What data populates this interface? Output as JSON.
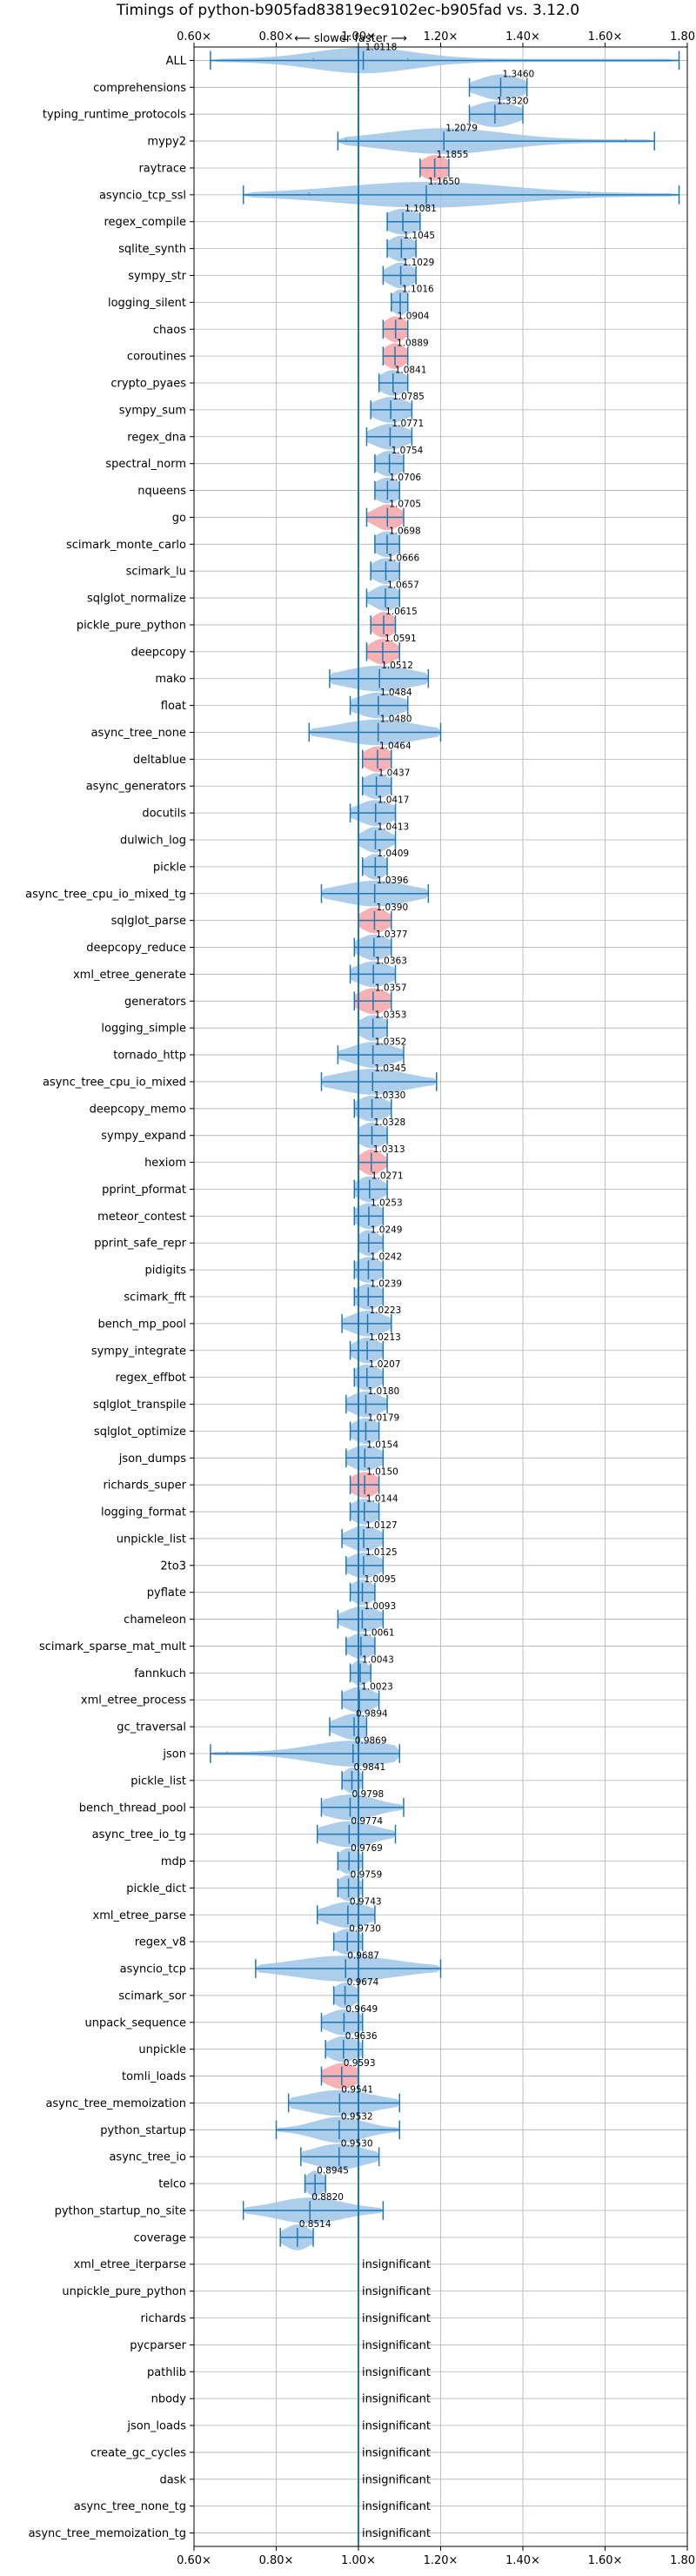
{
  "chart_data": {
    "type": "violin",
    "title": "Timings of python-b905fad83819ec9102ec-b905fad vs. 3.12.0",
    "subtitle": "⟵ slower   faster ⟶",
    "xlim": [
      0.6,
      1.8
    ],
    "x_ticks": [
      0.6,
      0.8,
      1.0,
      1.2,
      1.4,
      1.6,
      1.8
    ],
    "x_tick_labels": [
      "0.60×",
      "0.80×",
      "1.00×",
      "1.20×",
      "1.40×",
      "1.60×",
      "1.80×"
    ],
    "reference_line": 1.0,
    "grid": true,
    "insignificant_label": "insignificant",
    "colors": {
      "violin": "#9ec6e6",
      "violin_highlight": "#f4a3a8",
      "whisker": "#1f77b4",
      "grid": "#b0b0b0",
      "reference": "#1f77b4"
    },
    "benchmarks": [
      {
        "name": "ALL",
        "value": 1.0118,
        "label": "1.0118",
        "min": 0.64,
        "max": 1.78,
        "spread": 0.12,
        "q1": 0.89,
        "q3": 1.12,
        "highlight": false
      },
      {
        "name": "comprehensions",
        "value": 1.346,
        "label": "1.3460",
        "min": 1.27,
        "max": 1.41,
        "spread": 0.05,
        "highlight": false
      },
      {
        "name": "typing_runtime_protocols",
        "value": 1.332,
        "label": "1.3320",
        "min": 1.27,
        "max": 1.4,
        "spread": 0.05,
        "highlight": false
      },
      {
        "name": "mypy2",
        "value": 1.2079,
        "label": "1.2079",
        "min": 0.95,
        "max": 1.72,
        "spread": 0.14,
        "q1": 0.97,
        "q3": 1.65,
        "highlight": false
      },
      {
        "name": "raytrace",
        "value": 1.1855,
        "label": "1.1855",
        "min": 1.15,
        "max": 1.22,
        "spread": 0.03,
        "highlight": true
      },
      {
        "name": "asyncio_tcp_ssl",
        "value": 1.165,
        "label": "1.1650",
        "min": 0.72,
        "max": 1.78,
        "spread": 0.2,
        "q1": 0.88,
        "q3": 1.56,
        "highlight": false
      },
      {
        "name": "regex_compile",
        "value": 1.1081,
        "label": "1.1081",
        "min": 1.07,
        "max": 1.15,
        "spread": 0.04,
        "highlight": false
      },
      {
        "name": "sqlite_synth",
        "value": 1.1045,
        "label": "1.1045",
        "min": 1.07,
        "max": 1.14,
        "spread": 0.03,
        "highlight": false
      },
      {
        "name": "sympy_str",
        "value": 1.1029,
        "label": "1.1029",
        "min": 1.06,
        "max": 1.14,
        "spread": 0.03,
        "highlight": false
      },
      {
        "name": "logging_silent",
        "value": 1.1016,
        "label": "1.1016",
        "min": 1.08,
        "max": 1.12,
        "spread": 0.02,
        "highlight": false
      },
      {
        "name": "chaos",
        "value": 1.0904,
        "label": "1.0904",
        "min": 1.06,
        "max": 1.12,
        "spread": 0.025,
        "highlight": true
      },
      {
        "name": "coroutines",
        "value": 1.0889,
        "label": "1.0889",
        "min": 1.06,
        "max": 1.12,
        "spread": 0.025,
        "highlight": true
      },
      {
        "name": "crypto_pyaes",
        "value": 1.0841,
        "label": "1.0841",
        "min": 1.05,
        "max": 1.12,
        "spread": 0.03,
        "highlight": false
      },
      {
        "name": "sympy_sum",
        "value": 1.0785,
        "label": "1.0785",
        "min": 1.03,
        "max": 1.13,
        "spread": 0.04,
        "highlight": false
      },
      {
        "name": "regex_dna",
        "value": 1.0771,
        "label": "1.0771",
        "min": 1.02,
        "max": 1.13,
        "spread": 0.04,
        "highlight": false
      },
      {
        "name": "spectral_norm",
        "value": 1.0754,
        "label": "1.0754",
        "min": 1.04,
        "max": 1.11,
        "spread": 0.03,
        "highlight": false
      },
      {
        "name": "nqueens",
        "value": 1.0706,
        "label": "1.0706",
        "min": 1.04,
        "max": 1.1,
        "spread": 0.03,
        "highlight": false
      },
      {
        "name": "go",
        "value": 1.0705,
        "label": "1.0705",
        "min": 1.02,
        "max": 1.11,
        "spread": 0.03,
        "highlight": true
      },
      {
        "name": "scimark_monte_carlo",
        "value": 1.0698,
        "label": "1.0698",
        "min": 1.04,
        "max": 1.1,
        "spread": 0.03,
        "highlight": false
      },
      {
        "name": "scimark_lu",
        "value": 1.0666,
        "label": "1.0666",
        "min": 1.03,
        "max": 1.1,
        "spread": 0.03,
        "highlight": false
      },
      {
        "name": "sqlglot_normalize",
        "value": 1.0657,
        "label": "1.0657",
        "min": 1.02,
        "max": 1.1,
        "spread": 0.03,
        "highlight": false
      },
      {
        "name": "pickle_pure_python",
        "value": 1.0615,
        "label": "1.0615",
        "min": 1.03,
        "max": 1.09,
        "spread": 0.025,
        "highlight": true
      },
      {
        "name": "deepcopy",
        "value": 1.0591,
        "label": "1.0591",
        "min": 1.02,
        "max": 1.1,
        "spread": 0.03,
        "highlight": true
      },
      {
        "name": "mako",
        "value": 1.0512,
        "label": "1.0512",
        "min": 0.93,
        "max": 1.17,
        "spread": 0.08,
        "highlight": false
      },
      {
        "name": "float",
        "value": 1.0484,
        "label": "1.0484",
        "min": 0.98,
        "max": 1.12,
        "spread": 0.05,
        "highlight": false
      },
      {
        "name": "async_tree_none",
        "value": 1.048,
        "label": "1.0480",
        "min": 0.88,
        "max": 1.2,
        "spread": 0.09,
        "highlight": false
      },
      {
        "name": "deltablue",
        "value": 1.0464,
        "label": "1.0464",
        "min": 1.01,
        "max": 1.08,
        "spread": 0.03,
        "highlight": true
      },
      {
        "name": "async_generators",
        "value": 1.0437,
        "label": "1.0437",
        "min": 1.01,
        "max": 1.08,
        "spread": 0.03,
        "highlight": false
      },
      {
        "name": "docutils",
        "value": 1.0417,
        "label": "1.0417",
        "min": 0.98,
        "max": 1.09,
        "spread": 0.04,
        "highlight": false
      },
      {
        "name": "dulwich_log",
        "value": 1.0413,
        "label": "1.0413",
        "min": 1.0,
        "max": 1.09,
        "spread": 0.03,
        "highlight": false
      },
      {
        "name": "pickle",
        "value": 1.0409,
        "label": "1.0409",
        "min": 1.01,
        "max": 1.07,
        "spread": 0.025,
        "highlight": false
      },
      {
        "name": "async_tree_cpu_io_mixed_tg",
        "value": 1.0396,
        "label": "1.0396",
        "min": 0.91,
        "max": 1.17,
        "spread": 0.08,
        "highlight": false
      },
      {
        "name": "sqlglot_parse",
        "value": 1.039,
        "label": "1.0390",
        "min": 1.0,
        "max": 1.08,
        "spread": 0.03,
        "highlight": true
      },
      {
        "name": "deepcopy_reduce",
        "value": 1.0377,
        "label": "1.0377",
        "min": 0.99,
        "max": 1.08,
        "spread": 0.035,
        "highlight": false
      },
      {
        "name": "xml_etree_generate",
        "value": 1.0363,
        "label": "1.0363",
        "min": 0.98,
        "max": 1.09,
        "spread": 0.04,
        "highlight": false
      },
      {
        "name": "generators",
        "value": 1.0357,
        "label": "1.0357",
        "min": 0.99,
        "max": 1.08,
        "spread": 0.035,
        "highlight": true
      },
      {
        "name": "logging_simple",
        "value": 1.0353,
        "label": "1.0353",
        "min": 1.0,
        "max": 1.07,
        "spread": 0.03,
        "highlight": false
      },
      {
        "name": "tornado_http",
        "value": 1.0352,
        "label": "1.0352",
        "min": 0.95,
        "max": 1.11,
        "spread": 0.05,
        "highlight": false
      },
      {
        "name": "async_tree_cpu_io_mixed",
        "value": 1.0345,
        "label": "1.0345",
        "min": 0.91,
        "max": 1.19,
        "spread": 0.08,
        "highlight": false
      },
      {
        "name": "deepcopy_memo",
        "value": 1.033,
        "label": "1.0330",
        "min": 0.99,
        "max": 1.08,
        "spread": 0.035,
        "highlight": false
      },
      {
        "name": "sympy_expand",
        "value": 1.0328,
        "label": "1.0328",
        "min": 1.0,
        "max": 1.07,
        "spread": 0.03,
        "highlight": false
      },
      {
        "name": "hexiom",
        "value": 1.0313,
        "label": "1.0313",
        "min": 1.0,
        "max": 1.07,
        "spread": 0.025,
        "highlight": true
      },
      {
        "name": "pprint_pformat",
        "value": 1.0271,
        "label": "1.0271",
        "min": 0.99,
        "max": 1.07,
        "spread": 0.03,
        "highlight": false
      },
      {
        "name": "meteor_contest",
        "value": 1.0253,
        "label": "1.0253",
        "min": 0.99,
        "max": 1.06,
        "spread": 0.03,
        "highlight": false
      },
      {
        "name": "pprint_safe_repr",
        "value": 1.0249,
        "label": "1.0249",
        "min": 1.0,
        "max": 1.06,
        "spread": 0.025,
        "highlight": false
      },
      {
        "name": "pidigits",
        "value": 1.0242,
        "label": "1.0242",
        "min": 0.99,
        "max": 1.06,
        "spread": 0.03,
        "highlight": false
      },
      {
        "name": "scimark_fft",
        "value": 1.0239,
        "label": "1.0239",
        "min": 0.99,
        "max": 1.06,
        "spread": 0.03,
        "highlight": false
      },
      {
        "name": "bench_mp_pool",
        "value": 1.0223,
        "label": "1.0223",
        "min": 0.96,
        "max": 1.08,
        "spread": 0.04,
        "highlight": false
      },
      {
        "name": "sympy_integrate",
        "value": 1.0213,
        "label": "1.0213",
        "min": 0.98,
        "max": 1.06,
        "spread": 0.03,
        "highlight": false
      },
      {
        "name": "regex_effbot",
        "value": 1.0207,
        "label": "1.0207",
        "min": 0.99,
        "max": 1.06,
        "spread": 0.03,
        "highlight": false
      },
      {
        "name": "sqlglot_transpile",
        "value": 1.018,
        "label": "1.0180",
        "min": 0.97,
        "max": 1.07,
        "spread": 0.035,
        "highlight": false
      },
      {
        "name": "sqlglot_optimize",
        "value": 1.0179,
        "label": "1.0179",
        "min": 0.98,
        "max": 1.05,
        "spread": 0.03,
        "highlight": false
      },
      {
        "name": "json_dumps",
        "value": 1.0154,
        "label": "1.0154",
        "min": 0.97,
        "max": 1.06,
        "spread": 0.035,
        "highlight": false
      },
      {
        "name": "richards_super",
        "value": 1.015,
        "label": "1.0150",
        "min": 0.98,
        "max": 1.05,
        "spread": 0.03,
        "highlight": true
      },
      {
        "name": "logging_format",
        "value": 1.0144,
        "label": "1.0144",
        "min": 0.98,
        "max": 1.05,
        "spread": 0.03,
        "highlight": false
      },
      {
        "name": "unpickle_list",
        "value": 1.0127,
        "label": "1.0127",
        "min": 0.96,
        "max": 1.06,
        "spread": 0.035,
        "highlight": false
      },
      {
        "name": "2to3",
        "value": 1.0125,
        "label": "1.0125",
        "min": 0.97,
        "max": 1.06,
        "spread": 0.035,
        "highlight": false
      },
      {
        "name": "pyflate",
        "value": 1.0095,
        "label": "1.0095",
        "min": 0.98,
        "max": 1.04,
        "spread": 0.025,
        "highlight": false
      },
      {
        "name": "chameleon",
        "value": 1.0093,
        "label": "1.0093",
        "min": 0.95,
        "max": 1.06,
        "spread": 0.04,
        "highlight": false
      },
      {
        "name": "scimark_sparse_mat_mult",
        "value": 1.0061,
        "label": "1.0061",
        "min": 0.97,
        "max": 1.04,
        "spread": 0.03,
        "highlight": false
      },
      {
        "name": "fannkuch",
        "value": 1.0043,
        "label": "1.0043",
        "min": 0.98,
        "max": 1.03,
        "spread": 0.02,
        "highlight": false
      },
      {
        "name": "xml_etree_process",
        "value": 1.0023,
        "label": "1.0023",
        "min": 0.96,
        "max": 1.05,
        "spread": 0.035,
        "highlight": false
      },
      {
        "name": "gc_traversal",
        "value": 0.9894,
        "label": "0.9894",
        "min": 0.93,
        "max": 1.02,
        "spread": 0.04,
        "highlight": false
      },
      {
        "name": "json",
        "value": 0.9869,
        "label": "0.9869",
        "min": 0.64,
        "max": 1.1,
        "spread": 0.1,
        "q1": 0.68,
        "highlight": false
      },
      {
        "name": "pickle_list",
        "value": 0.9841,
        "label": "0.9841",
        "min": 0.96,
        "max": 1.01,
        "spread": 0.02,
        "highlight": false
      },
      {
        "name": "bench_thread_pool",
        "value": 0.9798,
        "label": "0.9798",
        "min": 0.91,
        "max": 1.11,
        "spread": 0.06,
        "highlight": false
      },
      {
        "name": "async_tree_io_tg",
        "value": 0.9774,
        "label": "0.9774",
        "min": 0.9,
        "max": 1.09,
        "spread": 0.06,
        "highlight": false
      },
      {
        "name": "mdp",
        "value": 0.9769,
        "label": "0.9769",
        "min": 0.95,
        "max": 1.01,
        "spread": 0.025,
        "highlight": false
      },
      {
        "name": "pickle_dict",
        "value": 0.9759,
        "label": "0.9759",
        "min": 0.95,
        "max": 1.01,
        "spread": 0.025,
        "highlight": false
      },
      {
        "name": "xml_etree_parse",
        "value": 0.9743,
        "label": "0.9743",
        "min": 0.9,
        "max": 1.04,
        "spread": 0.05,
        "highlight": false
      },
      {
        "name": "regex_v8",
        "value": 0.973,
        "label": "0.9730",
        "min": 0.94,
        "max": 1.01,
        "spread": 0.03,
        "highlight": false
      },
      {
        "name": "asyncio_tcp",
        "value": 0.9687,
        "label": "0.9687",
        "min": 0.75,
        "max": 1.2,
        "spread": 0.12,
        "highlight": false
      },
      {
        "name": "scimark_sor",
        "value": 0.9674,
        "label": "0.9674",
        "min": 0.94,
        "max": 1.0,
        "spread": 0.025,
        "highlight": false
      },
      {
        "name": "unpack_sequence",
        "value": 0.9649,
        "label": "0.9649",
        "min": 0.91,
        "max": 1.01,
        "spread": 0.04,
        "highlight": false
      },
      {
        "name": "unpickle",
        "value": 0.9636,
        "label": "0.9636",
        "min": 0.92,
        "max": 1.01,
        "spread": 0.035,
        "highlight": false
      },
      {
        "name": "tomli_loads",
        "value": 0.9593,
        "label": "0.9593",
        "min": 0.91,
        "max": 1.0,
        "spread": 0.035,
        "highlight": true
      },
      {
        "name": "async_tree_memoization",
        "value": 0.9541,
        "label": "0.9541",
        "min": 0.83,
        "max": 1.1,
        "spread": 0.08,
        "highlight": false
      },
      {
        "name": "python_startup",
        "value": 0.9532,
        "label": "0.9532",
        "min": 0.8,
        "max": 1.1,
        "spread": 0.06,
        "highlight": false
      },
      {
        "name": "async_tree_io",
        "value": 0.953,
        "label": "0.9530",
        "min": 0.86,
        "max": 1.05,
        "spread": 0.06,
        "highlight": false
      },
      {
        "name": "telco",
        "value": 0.8945,
        "label": "0.8945",
        "min": 0.87,
        "max": 0.92,
        "spread": 0.02,
        "highlight": false
      },
      {
        "name": "python_startup_no_site",
        "value": 0.882,
        "label": "0.8820",
        "min": 0.72,
        "max": 1.06,
        "spread": 0.08,
        "highlight": false
      },
      {
        "name": "coverage",
        "value": 0.8514,
        "label": "0.8514",
        "min": 0.81,
        "max": 0.89,
        "spread": 0.03,
        "highlight": false
      },
      {
        "name": "xml_etree_iterparse",
        "value": null,
        "insignificant": true
      },
      {
        "name": "unpickle_pure_python",
        "value": null,
        "insignificant": true
      },
      {
        "name": "richards",
        "value": null,
        "insignificant": true
      },
      {
        "name": "pycparser",
        "value": null,
        "insignificant": true
      },
      {
        "name": "pathlib",
        "value": null,
        "insignificant": true
      },
      {
        "name": "nbody",
        "value": null,
        "insignificant": true
      },
      {
        "name": "json_loads",
        "value": null,
        "insignificant": true
      },
      {
        "name": "create_gc_cycles",
        "value": null,
        "insignificant": true
      },
      {
        "name": "dask",
        "value": null,
        "insignificant": true
      },
      {
        "name": "async_tree_none_tg",
        "value": null,
        "insignificant": true
      },
      {
        "name": "async_tree_memoization_tg",
        "value": null,
        "insignificant": true
      }
    ]
  }
}
